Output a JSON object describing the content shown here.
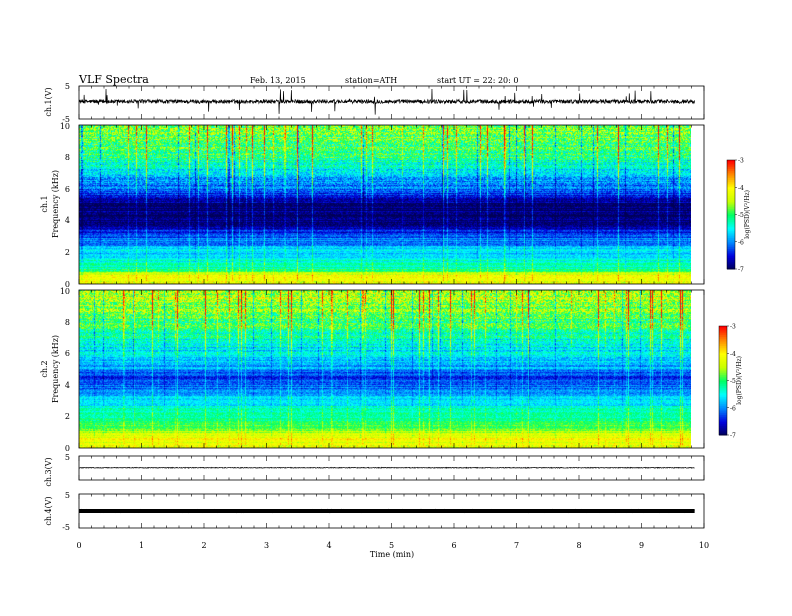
{
  "header": {
    "title": "VLF  Spectra",
    "date": "Feb. 13, 2015",
    "station": "station=ATH",
    "start": "start  UT  =    22: 20: 0"
  },
  "chart_data": [
    {
      "type": "line",
      "panel": "ch1-waveform",
      "ylabel": "ch.1(V)",
      "ylim": [
        -5,
        5
      ],
      "yticks": [
        "5",
        "-5"
      ],
      "x_range": [
        0,
        9.85
      ],
      "baseline": 0.3,
      "noise_amplitude": 0.6
    },
    {
      "type": "heatmap",
      "panel": "ch1-spectrogram",
      "ylabel": "ch.1\nFrequency  (kHz)",
      "ylabel_lines": [
        "ch.1",
        "Frequency  (kHz)"
      ],
      "ylim": [
        0,
        10
      ],
      "yticks": [
        "0",
        "2",
        "4",
        "6",
        "8",
        "10"
      ],
      "x_range": [
        0,
        9.85
      ],
      "profile_freq_khz": [
        0,
        0.5,
        1,
        2,
        2.5,
        3,
        3.5,
        4,
        5,
        5.5,
        6,
        7,
        8,
        9,
        10
      ],
      "profile_logpsd": [
        -4.3,
        -4.0,
        -5.2,
        -5.6,
        -5.9,
        -6.2,
        -6.5,
        -6.9,
        -6.9,
        -6.5,
        -6.1,
        -5.6,
        -5.1,
        -4.8,
        -4.7
      ],
      "colorbar": {
        "label": "log(PSD)(V²/Hz)",
        "ticks": [
          "-3",
          "-4",
          "-5",
          "-6",
          "-7"
        ],
        "range": [
          -7,
          -3
        ]
      }
    },
    {
      "type": "heatmap",
      "panel": "ch2-spectrogram",
      "ylabel": "ch.2\nFrequency  (kHz)",
      "ylabel_lines": [
        "ch.2",
        "Frequency  (kHz)"
      ],
      "ylim": [
        0,
        10
      ],
      "yticks": [
        "0",
        "2",
        "4",
        "6",
        "8",
        "10"
      ],
      "x_range": [
        0,
        9.85
      ],
      "profile_freq_khz": [
        0,
        0.5,
        1,
        1.5,
        2,
        3,
        4,
        4.5,
        5,
        5.5,
        6,
        7,
        8,
        9,
        10
      ],
      "profile_logpsd": [
        -4.5,
        -4.1,
        -4.5,
        -4.9,
        -5.2,
        -5.6,
        -6.1,
        -6.3,
        -5.9,
        -5.7,
        -5.6,
        -5.3,
        -5.0,
        -4.6,
        -4.4
      ],
      "colorbar": {
        "label": "log(PSD)(V²/Hz)",
        "ticks": [
          "-3",
          "-4",
          "-5",
          "-6",
          "-7"
        ],
        "range": [
          -7,
          -3
        ]
      }
    },
    {
      "type": "line",
      "panel": "ch3-waveform",
      "ylabel": "ch.3(V)",
      "ylim": [
        -5,
        5
      ],
      "yticks": [
        "5",
        "-5"
      ],
      "x_range": [
        0,
        9.85
      ],
      "baseline": 0.1,
      "noise_amplitude": 0.15
    },
    {
      "type": "line",
      "panel": "ch4-waveform",
      "ylabel": "ch.4(V)",
      "ylim": [
        -5,
        5
      ],
      "yticks": [
        "5",
        "-5"
      ],
      "x_range": [
        0,
        9.85
      ],
      "baseline": 0.0,
      "noise_amplitude": 0.35
    }
  ],
  "xaxis": {
    "label": "Time  (min)",
    "range": [
      0,
      10
    ],
    "ticks": [
      "0",
      "1",
      "2",
      "3",
      "4",
      "5",
      "6",
      "7",
      "8",
      "9",
      "10"
    ]
  },
  "colors": {
    "colormap": [
      "#000055",
      "#0000dd",
      "#0088ff",
      "#00ffff",
      "#00ff66",
      "#c8ff00",
      "#ffff00",
      "#ff8800",
      "#ff0000",
      "#ffffff"
    ]
  }
}
